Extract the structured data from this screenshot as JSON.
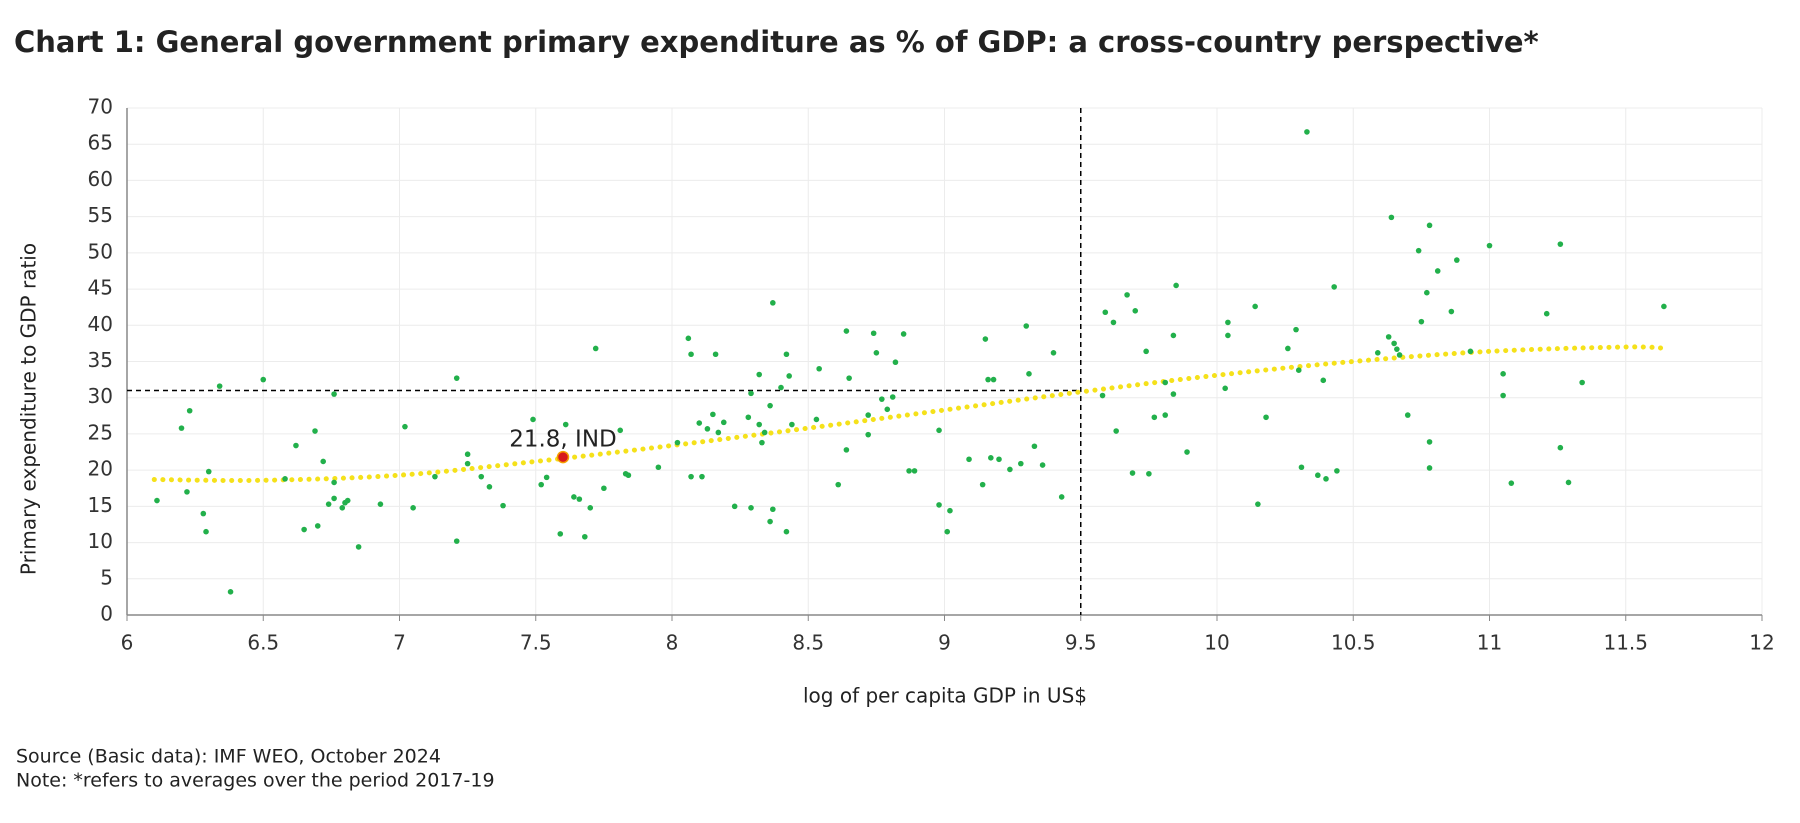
{
  "chart_data": {
    "type": "scatter",
    "title": "Chart 1: General government primary expenditure as % of GDP: a cross-country perspective*",
    "xlabel": "log of per capita GDP in US$",
    "ylabel": "Primary expenditure to GDP ratio",
    "source": "Source (Basic data): IMF WEO, October 2024",
    "note": "Note: *refers to averages over the period 2017-19",
    "xlim": [
      6,
      12
    ],
    "xticks": [
      6,
      6.5,
      7,
      7.5,
      8,
      8.5,
      9,
      9.5,
      10,
      10.5,
      11,
      11.5,
      12
    ],
    "ylim": [
      0,
      70
    ],
    "yticks": [
      0,
      5,
      10,
      15,
      20,
      25,
      30,
      35,
      40,
      45,
      50,
      55,
      60,
      65,
      70
    ],
    "grid": true,
    "points": {
      "color": "#22b04b",
      "x": [
        6.11,
        6.2,
        6.23,
        6.22,
        6.28,
        6.3,
        6.29,
        6.34,
        6.38,
        6.5,
        6.58,
        6.62,
        6.65,
        6.69,
        6.7,
        6.72,
        6.74,
        6.76,
        6.76,
        6.76,
        6.79,
        6.8,
        6.81,
        6.85,
        6.93,
        7.02,
        7.05,
        7.13,
        7.21,
        7.21,
        7.25,
        7.25,
        7.3,
        7.33,
        7.38,
        7.49,
        7.52,
        7.54,
        7.59,
        7.61,
        7.64,
        7.66,
        7.68,
        7.7,
        7.72,
        7.75,
        7.81,
        7.83,
        7.84,
        7.95,
        8.02,
        8.06,
        8.07,
        8.07,
        8.1,
        8.11,
        8.13,
        8.15,
        8.16,
        8.17,
        8.19,
        8.23,
        8.28,
        8.29,
        8.29,
        8.32,
        8.32,
        8.33,
        8.34,
        8.36,
        8.36,
        8.37,
        8.37,
        8.4,
        8.42,
        8.42,
        8.43,
        8.44,
        8.54,
        8.53,
        8.61,
        8.64,
        8.65,
        8.64,
        8.72,
        8.72,
        8.74,
        8.75,
        8.77,
        8.79,
        8.81,
        8.82,
        8.85,
        8.87,
        8.89,
        8.98,
        8.98,
        9.01,
        9.02,
        9.09,
        9.14,
        9.15,
        9.16,
        9.17,
        9.18,
        9.2,
        9.24,
        9.28,
        9.3,
        9.31,
        9.33,
        9.36,
        9.4,
        9.43,
        9.58,
        9.59,
        9.62,
        9.63,
        9.67,
        9.69,
        9.7,
        9.74,
        9.75,
        9.77,
        9.81,
        9.81,
        9.84,
        9.84,
        9.85,
        9.89,
        10.03,
        10.04,
        10.04,
        10.14,
        10.15,
        10.18,
        10.26,
        10.29,
        10.3,
        10.31,
        10.33,
        10.37,
        10.39,
        10.4,
        10.43,
        10.44,
        10.59,
        10.63,
        10.64,
        10.65,
        10.66,
        10.67,
        10.7,
        10.74,
        10.75,
        10.77,
        10.78,
        10.78,
        10.78,
        10.81,
        10.86,
        10.88,
        10.93,
        11.0,
        11.05,
        11.05,
        11.08,
        11.21,
        11.26,
        11.26,
        11.29,
        11.34,
        11.64
      ],
      "y": [
        15.8,
        25.8,
        28.2,
        17,
        14,
        19.8,
        11.5,
        31.6,
        3.2,
        32.5,
        18.8,
        23.4,
        11.8,
        25.4,
        12.3,
        21.2,
        15.3,
        30.5,
        18.3,
        16.1,
        14.8,
        15.5,
        15.8,
        9.4,
        15.3,
        26,
        14.8,
        19.1,
        32.7,
        10.2,
        22.2,
        20.9,
        19.1,
        17.7,
        15.1,
        27,
        18,
        19,
        11.2,
        26.3,
        16.3,
        16,
        10.8,
        14.8,
        36.8,
        17.5,
        25.5,
        19.5,
        19.3,
        20.4,
        23.8,
        38.2,
        36,
        19.1,
        26.5,
        19.1,
        25.7,
        27.7,
        36,
        25.2,
        26.6,
        15,
        27.3,
        30.6,
        14.8,
        33.2,
        26.3,
        23.8,
        25.2,
        28.9,
        12.9,
        43.1,
        14.6,
        31.4,
        36,
        11.5,
        33,
        26.3,
        34,
        27,
        18,
        39.2,
        32.7,
        22.8,
        24.9,
        27.6,
        38.9,
        36.2,
        29.8,
        28.4,
        30.1,
        34.9,
        38.8,
        19.9,
        19.9,
        25.5,
        15.2,
        11.5,
        14.4,
        21.5,
        18,
        38.1,
        32.5,
        21.7,
        32.5,
        21.5,
        20.1,
        20.9,
        39.9,
        33.3,
        23.3,
        20.7,
        36.2,
        16.3,
        30.3,
        41.8,
        40.4,
        25.4,
        44.2,
        19.6,
        42,
        36.4,
        19.5,
        27.3,
        27.6,
        32.1,
        38.6,
        30.5,
        45.5,
        22.5,
        31.3,
        40.4,
        38.6,
        42.6,
        15.3,
        27.3,
        36.8,
        39.4,
        33.8,
        20.4,
        66.7,
        19.3,
        32.4,
        18.8,
        45.3,
        19.9,
        36.2,
        38.4,
        54.9,
        37.5,
        36.7,
        35.9,
        27.6,
        50.3,
        40.5,
        44.5,
        23.9,
        20.3,
        53.8,
        47.5,
        41.9,
        49,
        36.4,
        51,
        33.3,
        30.3,
        18.2,
        41.6,
        51.2,
        23.1,
        18.3,
        32.1,
        42.6
      ]
    },
    "trend": {
      "color": "#f5e11a",
      "x": [
        6.1,
        6.5,
        7,
        7.5,
        8,
        8.5,
        9,
        9.5,
        10,
        10.5,
        11,
        11.5,
        11.65
      ],
      "y": [
        18.7,
        18.6,
        19.3,
        21.2,
        23.4,
        25.8,
        28.3,
        30.8,
        33.1,
        35,
        36.4,
        37,
        36.8
      ]
    },
    "highlight": {
      "color": "#d7191c",
      "x": 7.6,
      "y": 21.8,
      "label": "21.8, IND"
    },
    "vline": 9.5,
    "hline": 31
  }
}
